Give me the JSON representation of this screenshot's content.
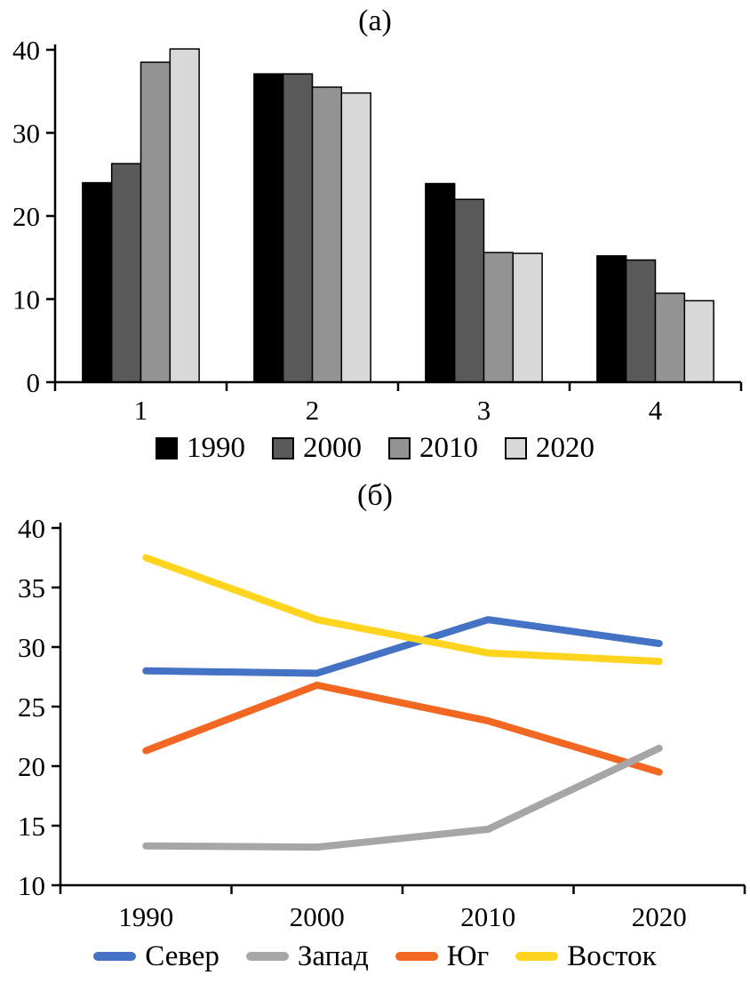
{
  "chart_data": [
    {
      "type": "bar",
      "title": "(а)",
      "categories": [
        "1",
        "2",
        "3",
        "4"
      ],
      "series": [
        {
          "name": "1990",
          "color": "#000000",
          "values": [
            24.0,
            37.1,
            23.9,
            15.2
          ]
        },
        {
          "name": "2000",
          "color": "#595959",
          "values": [
            26.3,
            37.1,
            22.0,
            14.7
          ]
        },
        {
          "name": "2010",
          "color": "#939393",
          "values": [
            38.5,
            35.5,
            15.6,
            10.7
          ]
        },
        {
          "name": "2020",
          "color": "#d8d8d8",
          "values": [
            40.1,
            34.8,
            15.5,
            9.8
          ]
        }
      ],
      "xlabel": "",
      "ylabel": "",
      "ylim": [
        0,
        40
      ],
      "yticks": [
        0,
        10,
        20,
        30,
        40
      ],
      "grid": false,
      "legend_position": "bottom",
      "draw_order": [
        0,
        1,
        2,
        3
      ]
    },
    {
      "type": "line",
      "title": "(б)",
      "x": [
        "1990",
        "2000",
        "2010",
        "2020"
      ],
      "series": [
        {
          "name": "Север",
          "color": "#4472c4",
          "values": [
            28.0,
            27.8,
            32.3,
            30.3
          ]
        },
        {
          "name": "Запад",
          "color": "#a6a6a6",
          "values": [
            13.3,
            13.2,
            14.7,
            21.5
          ]
        },
        {
          "name": "Юг",
          "color": "#f26722",
          "values": [
            21.3,
            26.8,
            23.8,
            19.5
          ]
        },
        {
          "name": "Восток",
          "color": "#ffd41f",
          "values": [
            37.5,
            32.3,
            29.5,
            28.8
          ]
        }
      ],
      "xlabel": "",
      "ylabel": "",
      "ylim": [
        10,
        40
      ],
      "yticks": [
        10,
        15,
        20,
        25,
        30,
        35,
        40
      ],
      "grid": false,
      "legend_position": "bottom",
      "draw_order": [
        0,
        2,
        1,
        3
      ]
    }
  ]
}
